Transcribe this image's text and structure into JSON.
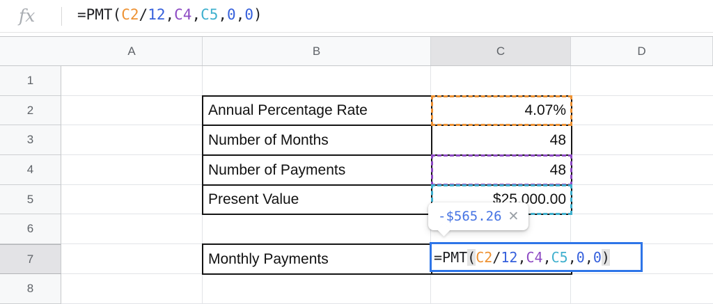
{
  "formula_bar": {
    "fx_label": "fx"
  },
  "formula": {
    "tokens": [
      {
        "text": "=PMT",
        "color": "text"
      },
      {
        "text": "(",
        "color": "text",
        "paren": true
      },
      {
        "text": "C2",
        "color": "orange"
      },
      {
        "text": "/",
        "color": "text"
      },
      {
        "text": "12",
        "color": "number"
      },
      {
        "text": ",",
        "color": "text"
      },
      {
        "text": "C4",
        "color": "purple"
      },
      {
        "text": ",",
        "color": "text"
      },
      {
        "text": "C5",
        "color": "cyan"
      },
      {
        "text": ",",
        "color": "text"
      },
      {
        "text": "0",
        "color": "number"
      },
      {
        "text": ",",
        "color": "text"
      },
      {
        "text": "0",
        "color": "number"
      },
      {
        "text": ")",
        "color": "text",
        "paren": true
      }
    ]
  },
  "colors": {
    "ref_orange": "#EE9233",
    "ref_purple": "#8E4BC4",
    "ref_cyan": "#3FB0CE",
    "literal_blue": "#3560DC",
    "selection_blue": "#2E75E8",
    "tooltip_blue": "#4573E3",
    "table_border": "#141414"
  },
  "columns": [
    {
      "label": "A",
      "selected": false
    },
    {
      "label": "B",
      "selected": false
    },
    {
      "label": "C",
      "selected": true
    },
    {
      "label": "D",
      "selected": false
    }
  ],
  "rows": [
    {
      "label": "1",
      "selected": false
    },
    {
      "label": "2",
      "selected": false
    },
    {
      "label": "3",
      "selected": false
    },
    {
      "label": "4",
      "selected": false
    },
    {
      "label": "5",
      "selected": false
    },
    {
      "label": "6",
      "selected": false
    },
    {
      "label": "7",
      "selected": true
    },
    {
      "label": "8",
      "selected": false
    }
  ],
  "table": {
    "rows": [
      {
        "label": "Annual Percentage Rate",
        "value": "4.07%",
        "ref_highlight": "orange"
      },
      {
        "label": "Number of Months",
        "value": "48",
        "ref_highlight": null
      },
      {
        "label": "Number of Payments",
        "value": "48",
        "ref_highlight": "purple"
      },
      {
        "label": "Present Value",
        "value": "$25,000.00",
        "ref_highlight": "cyan"
      }
    ]
  },
  "row7": {
    "label": "Monthly Payments"
  },
  "tooltip": {
    "value": "-$565.26",
    "close_label": "✕"
  }
}
